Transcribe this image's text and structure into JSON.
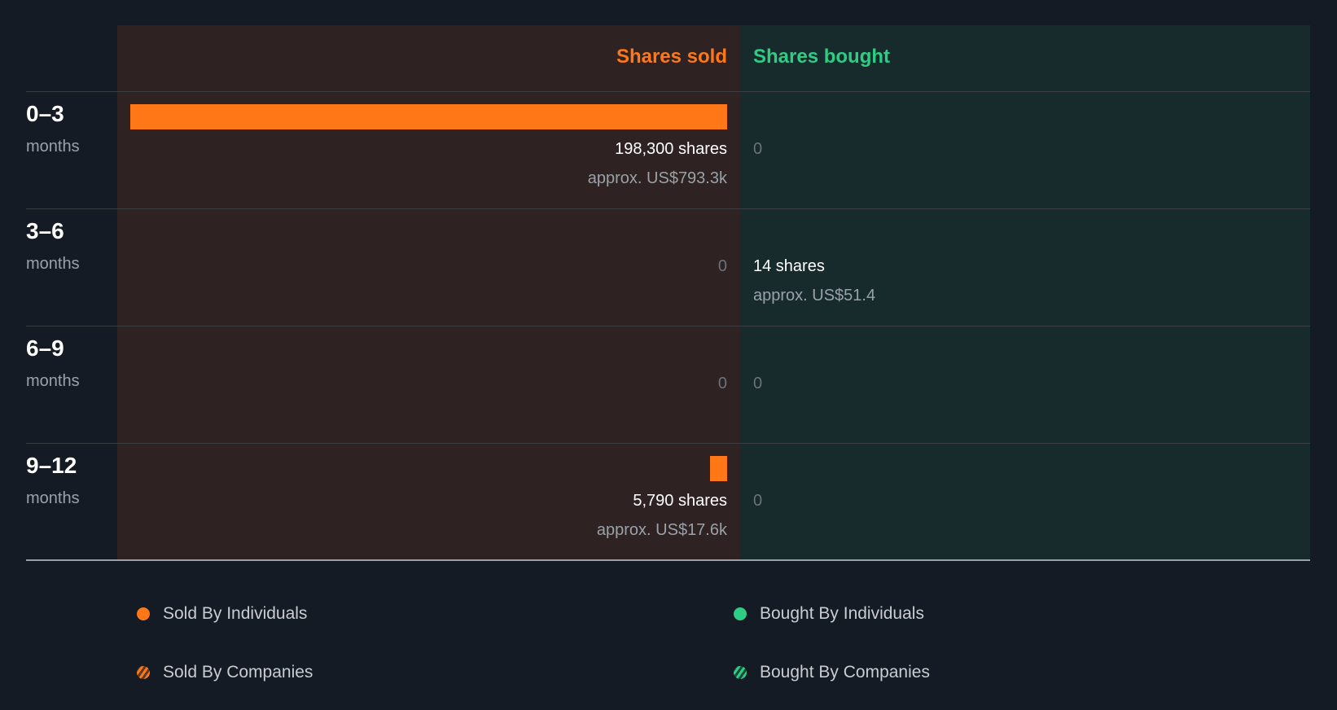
{
  "header": {
    "sold_label": "Shares sold",
    "bought_label": "Shares bought"
  },
  "colors": {
    "sold": "#ff7717",
    "bought": "#2ecc84"
  },
  "rows": [
    {
      "period": "0–3",
      "unit": "months",
      "sold_shares": 198300,
      "sold_text": "198,300 shares",
      "sold_approx": "approx. US$793.3k",
      "bought_shares": 0,
      "bought_text": "0",
      "bought_approx": ""
    },
    {
      "period": "3–6",
      "unit": "months",
      "sold_shares": 0,
      "sold_text": "0",
      "sold_approx": "",
      "bought_shares": 14,
      "bought_text": "14 shares",
      "bought_approx": "approx. US$51.4"
    },
    {
      "period": "6–9",
      "unit": "months",
      "sold_shares": 0,
      "sold_text": "0",
      "sold_approx": "",
      "bought_shares": 0,
      "bought_text": "0",
      "bought_approx": ""
    },
    {
      "period": "9–12",
      "unit": "months",
      "sold_shares": 5790,
      "sold_text": "5,790 shares",
      "sold_approx": "approx. US$17.6k",
      "bought_shares": 0,
      "bought_text": "0",
      "bought_approx": ""
    }
  ],
  "legend": [
    {
      "label": "Sold By Individuals",
      "style": "sold-solid"
    },
    {
      "label": "Bought By Individuals",
      "style": "bought-solid"
    },
    {
      "label": "Sold By Companies",
      "style": "sold-striped"
    },
    {
      "label": "Bought By Companies",
      "style": "bought-striped"
    }
  ],
  "chart_data": {
    "type": "bar",
    "categories": [
      "0–3 months",
      "3–6 months",
      "6–9 months",
      "9–12 months"
    ],
    "series": [
      {
        "name": "Shares sold",
        "values": [
          198300,
          0,
          0,
          5790
        ],
        "approx_value": [
          "US$793.3k",
          "",
          "",
          "US$17.6k"
        ]
      },
      {
        "name": "Shares bought",
        "values": [
          0,
          14,
          0,
          0
        ],
        "approx_value": [
          "",
          "US$51.4",
          "",
          ""
        ]
      }
    ],
    "legend": [
      "Sold By Individuals",
      "Bought By Individuals",
      "Sold By Companies",
      "Bought By Companies"
    ],
    "legend_position": "bottom"
  }
}
